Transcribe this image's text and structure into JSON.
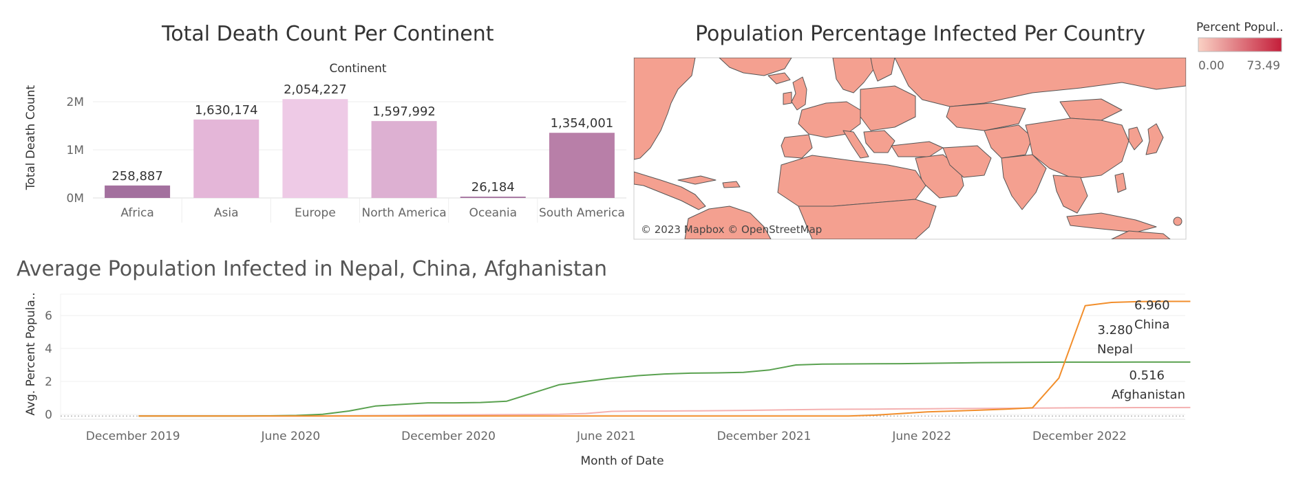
{
  "bar_chart": {
    "title": "Total Death Count Per Continent",
    "header": "Continent",
    "ylabel": "Total Death Count",
    "yticks": [
      {
        "value": 0,
        "label": "0M"
      },
      {
        "value": 1000000,
        "label": "1M"
      },
      {
        "value": 2000000,
        "label": "2M"
      }
    ]
  },
  "map": {
    "title": "Population Percentage Infected Per Country",
    "attribution": "© 2023 Mapbox © OpenStreetMap",
    "legend": {
      "title": "Percent Popul..",
      "min_label": "0.00",
      "max_label": "73.49",
      "color_low": "#fad1c4",
      "color_high": "#c41e3a"
    },
    "land_color": "#f4a090",
    "ocean_color": "#ffffff"
  },
  "line_chart": {
    "title": "Average Population Infected in Nepal, China, Afghanistan",
    "xlabel": "Month of Date",
    "ylabel": "Avg. Percent Popula..",
    "yticks": [
      {
        "value": 0,
        "label": "0"
      },
      {
        "value": 2,
        "label": "2"
      },
      {
        "value": 4,
        "label": "4"
      },
      {
        "value": 6,
        "label": "6"
      }
    ],
    "xticks": [
      "December 2019",
      "June 2020",
      "December 2020",
      "June 2021",
      "December 2021",
      "June 2022",
      "December 2022"
    ]
  },
  "chart_data": [
    {
      "type": "bar",
      "title": "Total Death Count Per Continent",
      "xlabel": "Continent",
      "ylabel": "Total Death Count",
      "categories": [
        "Africa",
        "Asia",
        "Europe",
        "North America",
        "Oceania",
        "South America"
      ],
      "values": [
        258887,
        1630174,
        2054227,
        1597992,
        26184,
        1354001
      ],
      "value_labels": [
        "258,887",
        "1,630,174",
        "2,054,227",
        "1,597,992",
        "26,184",
        "1,354,001"
      ],
      "colors": [
        "#a3709e",
        "#e4b6d8",
        "#eecae6",
        "#ddb0d2",
        "#a3709e",
        "#b87fa8"
      ],
      "ylim": [
        0,
        2400000
      ],
      "grid": true
    },
    {
      "type": "line",
      "title": "Average Population Infected in Nepal, China, Afghanistan",
      "xlabel": "Month of Date",
      "ylabel": "Avg. Percent Popula..",
      "ylim": [
        -0.3,
        7.3
      ],
      "x": [
        "2020-01",
        "2020-02",
        "2020-03",
        "2020-04",
        "2020-05",
        "2020-06",
        "2020-07",
        "2020-08",
        "2020-09",
        "2020-10",
        "2020-11",
        "2020-12",
        "2021-01",
        "2021-02",
        "2021-03",
        "2021-04",
        "2021-05",
        "2021-06",
        "2021-07",
        "2021-08",
        "2021-09",
        "2021-10",
        "2021-11",
        "2021-12",
        "2022-01",
        "2022-02",
        "2022-03",
        "2022-04",
        "2022-05",
        "2022-06",
        "2022-07",
        "2022-08",
        "2022-09",
        "2022-10",
        "2022-11",
        "2022-12",
        "2023-01",
        "2023-02",
        "2023-03",
        "2023-04",
        "2023-05"
      ],
      "series": [
        {
          "name": "China",
          "color": "#f28e2b",
          "end_label": "6.960",
          "values": [
            0,
            0,
            0,
            0,
            0,
            0,
            0,
            0,
            0,
            0,
            0,
            0,
            0,
            0,
            0,
            0,
            0,
            0,
            0,
            0,
            0,
            0,
            0,
            0,
            0,
            0,
            0,
            0,
            0.05,
            0.15,
            0.25,
            0.3,
            0.35,
            0.42,
            0.5,
            2.3,
            6.7,
            6.9,
            6.95,
            6.96,
            6.96
          ]
        },
        {
          "name": "Nepal",
          "color": "#59a14f",
          "end_label": "3.280",
          "values": [
            0,
            0,
            0,
            0,
            0,
            0.01,
            0.03,
            0.1,
            0.3,
            0.6,
            0.7,
            0.8,
            0.8,
            0.82,
            0.9,
            1.4,
            1.9,
            2.1,
            2.3,
            2.45,
            2.55,
            2.6,
            2.62,
            2.65,
            2.8,
            3.1,
            3.15,
            3.16,
            3.17,
            3.18,
            3.2,
            3.22,
            3.24,
            3.25,
            3.26,
            3.27,
            3.27,
            3.27,
            3.28,
            3.28,
            3.28
          ]
        },
        {
          "name": "Afghanistan",
          "color": "#f4b0b0",
          "end_label": "0.516",
          "values": [
            0,
            0,
            0,
            0,
            0,
            0,
            0,
            0,
            0.01,
            0.02,
            0.03,
            0.05,
            0.06,
            0.07,
            0.08,
            0.09,
            0.1,
            0.15,
            0.28,
            0.3,
            0.3,
            0.31,
            0.32,
            0.34,
            0.36,
            0.38,
            0.4,
            0.41,
            0.42,
            0.43,
            0.44,
            0.45,
            0.46,
            0.47,
            0.48,
            0.49,
            0.5,
            0.5,
            0.51,
            0.51,
            0.516
          ]
        }
      ]
    }
  ]
}
